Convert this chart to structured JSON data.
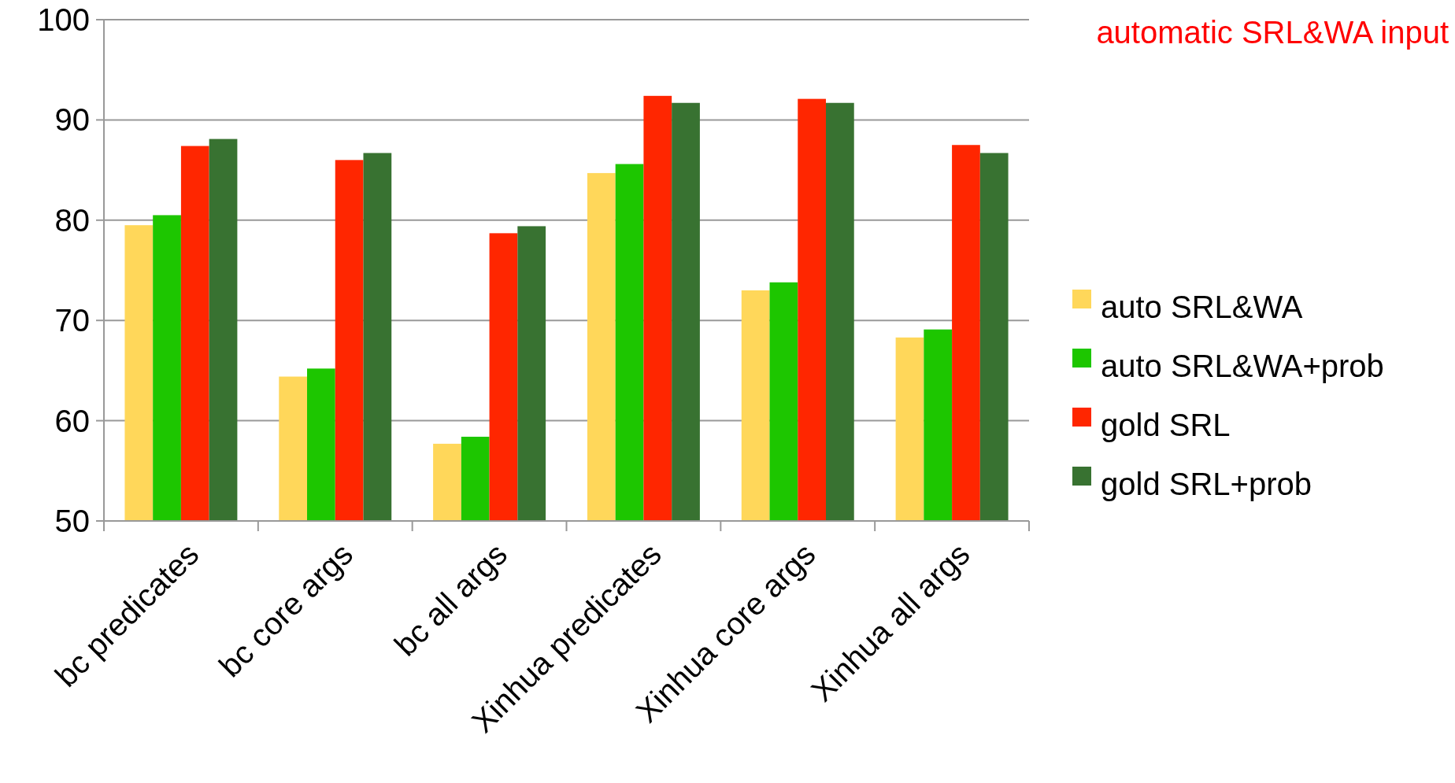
{
  "chart_data": {
    "type": "bar",
    "categories": [
      "bc predicates",
      "bc core args",
      "bc all args",
      "Xinhua predicates",
      "Xinhua core args",
      "Xinhua all args"
    ],
    "series": [
      {
        "name": "auto SRL&WA",
        "color": "#ffd75a",
        "values": [
          79.5,
          64.4,
          57.7,
          84.7,
          73.0,
          68.3
        ]
      },
      {
        "name": "auto SRL&WA+prob",
        "color": "#1dc600",
        "values": [
          80.5,
          65.2,
          58.4,
          85.6,
          73.8,
          69.1
        ]
      },
      {
        "name": "gold SRL",
        "color": "#ff2600",
        "values": [
          87.4,
          86.0,
          78.7,
          92.4,
          92.1,
          87.5
        ]
      },
      {
        "name": "gold SRL+prob",
        "color": "#387231",
        "values": [
          88.1,
          86.7,
          79.4,
          91.7,
          91.7,
          86.7
        ]
      }
    ],
    "ylim": [
      50,
      100
    ],
    "yticks": [
      50,
      60,
      70,
      80,
      90,
      100
    ],
    "grid": "y",
    "legend": "right",
    "annotations": [
      "automatic SRL&WA input"
    ]
  }
}
